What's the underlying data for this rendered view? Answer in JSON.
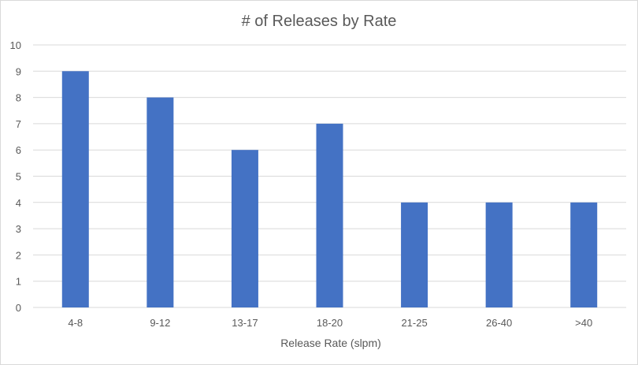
{
  "chart_data": {
    "type": "bar",
    "title": "# of Releases by Rate",
    "xlabel": "Release Rate (slpm)",
    "ylabel": "",
    "categories": [
      "4-8",
      "9-12",
      "13-17",
      "18-20",
      "21-25",
      "26-40",
      ">40"
    ],
    "values": [
      9,
      8,
      6,
      7,
      4,
      4,
      4
    ],
    "ylim": [
      0,
      10
    ],
    "yticks": [
      "0",
      "1",
      "2",
      "3",
      "4",
      "5",
      "6",
      "7",
      "8",
      "9",
      "10"
    ],
    "grid": true,
    "legend": "none",
    "colors": {
      "bar": "#4472C4",
      "grid": "#d9d9d9",
      "text": "#595959"
    }
  }
}
